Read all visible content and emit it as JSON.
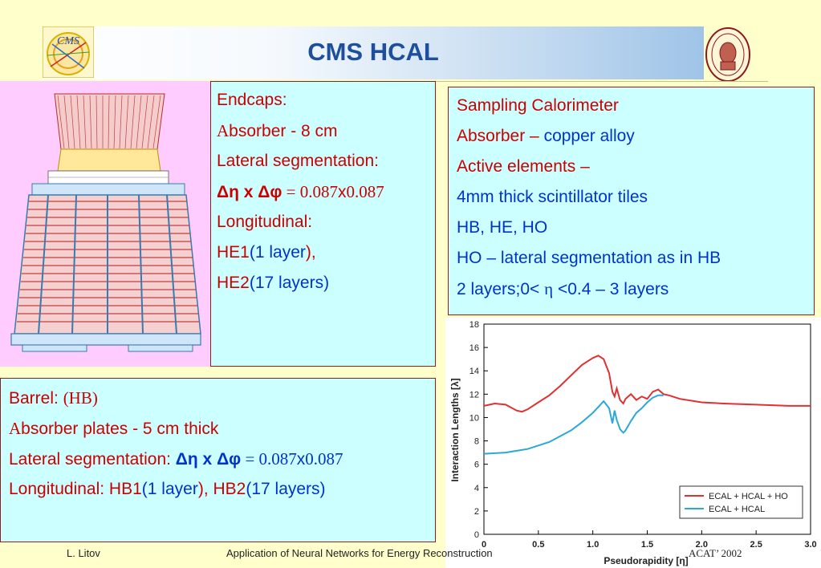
{
  "slide": {
    "title": "CMS HCAL",
    "cms_logo_text": "CMS"
  },
  "endcap": {
    "l1": "Endcaps:",
    "l2_a": "A",
    "l2_b": "bsorber  - 8 cm",
    "l3": "Lateral segmentation:",
    "l4_a": "Δη  x Δφ",
    "l4_b": " = 0.087",
    "l4_c": "x",
    "l4_d": "0.087",
    "l5": "Longitudinal:",
    "l6_a": " HE1",
    "l6_b": "(1 layer",
    "l6_c": "),",
    "l7_a": " HE2",
    "l7_b": "(17 layers)"
  },
  "sampling": {
    "l1": "Sampling Calorimeter",
    "l2_a": "Absorber – ",
    "l2_b": "copper alloy",
    "l3": "Active elements –",
    "l4": "4mm thick scintillator tiles",
    "l5": "HB, HE, HO",
    "l6": "HO – lateral segmentation as in HB",
    "l7_a": "2 layers;0< ",
    "l7_b": "η",
    "l7_c": " <0.4 – 3 layers"
  },
  "barrel": {
    "l1_a": "Barrel: ",
    "l1_b": "(HB)",
    "l2_a": "A",
    "l2_b": "bsorber plates - 5 cm thick",
    "l3_a": "Lateral segmentation: ",
    "l3_b": "Δη  x Δφ",
    "l3_c": " = 0.087",
    "l3_d": "x",
    "l3_e": "0.087",
    "l4_a": "Longitudinal: HB1",
    "l4_b": "(1 layer",
    "l4_c": "), HB2",
    "l4_d": "(17 layers)"
  },
  "footer": {
    "author": "L. Litov",
    "talk": "Application of Neural Networks for Energy Reconstruction",
    "conf": "ACAT’ 2002"
  },
  "chart_data": {
    "type": "line",
    "xlabel": "Pseudorapidity [η]",
    "ylabel": "Interaction Lengths [λ]",
    "xlim": [
      0,
      3.0
    ],
    "ylim": [
      0,
      18
    ],
    "xticks": [
      "0",
      "0.5",
      "1.0",
      "1.5",
      "2.0",
      "2.5",
      "3.0"
    ],
    "yticks": [
      "0",
      "2",
      "4",
      "6",
      "8",
      "10",
      "12",
      "14",
      "16",
      "18"
    ],
    "legend_position": "bottom-right",
    "series": [
      {
        "name": "ECAL + HCAL + HO",
        "color": "#e03030",
        "x": [
          0,
          0.1,
          0.2,
          0.3,
          0.35,
          0.4,
          0.5,
          0.6,
          0.7,
          0.8,
          0.9,
          1.0,
          1.05,
          1.1,
          1.15,
          1.18,
          1.2,
          1.22,
          1.25,
          1.28,
          1.3,
          1.35,
          1.4,
          1.45,
          1.5,
          1.55,
          1.6,
          1.65,
          1.7,
          1.8,
          2.0,
          2.2,
          2.5,
          2.8,
          3.0
        ],
        "y": [
          11.0,
          11.2,
          11.1,
          10.6,
          10.5,
          10.7,
          11.3,
          11.9,
          12.7,
          13.6,
          14.5,
          15.1,
          15.3,
          15.0,
          13.8,
          12.2,
          11.8,
          12.5,
          11.5,
          11.2,
          11.6,
          12.0,
          11.5,
          11.8,
          11.6,
          12.2,
          12.4,
          12.0,
          11.9,
          11.6,
          11.3,
          11.2,
          11.1,
          11.0,
          11.0
        ]
      },
      {
        "name": "ECAL + HCAL",
        "color": "#2aa8d8",
        "x": [
          0,
          0.2,
          0.4,
          0.6,
          0.8,
          0.9,
          1.0,
          1.05,
          1.1,
          1.15,
          1.18,
          1.2,
          1.22,
          1.25,
          1.28,
          1.3,
          1.35,
          1.4,
          1.45,
          1.5,
          1.55,
          1.6,
          1.65
        ],
        "y": [
          6.9,
          7.0,
          7.3,
          7.9,
          8.9,
          9.6,
          10.4,
          10.9,
          11.4,
          10.8,
          9.5,
          10.6,
          9.8,
          9.0,
          8.7,
          8.9,
          9.7,
          10.4,
          10.8,
          11.3,
          11.7,
          11.9,
          11.9
        ]
      }
    ]
  }
}
